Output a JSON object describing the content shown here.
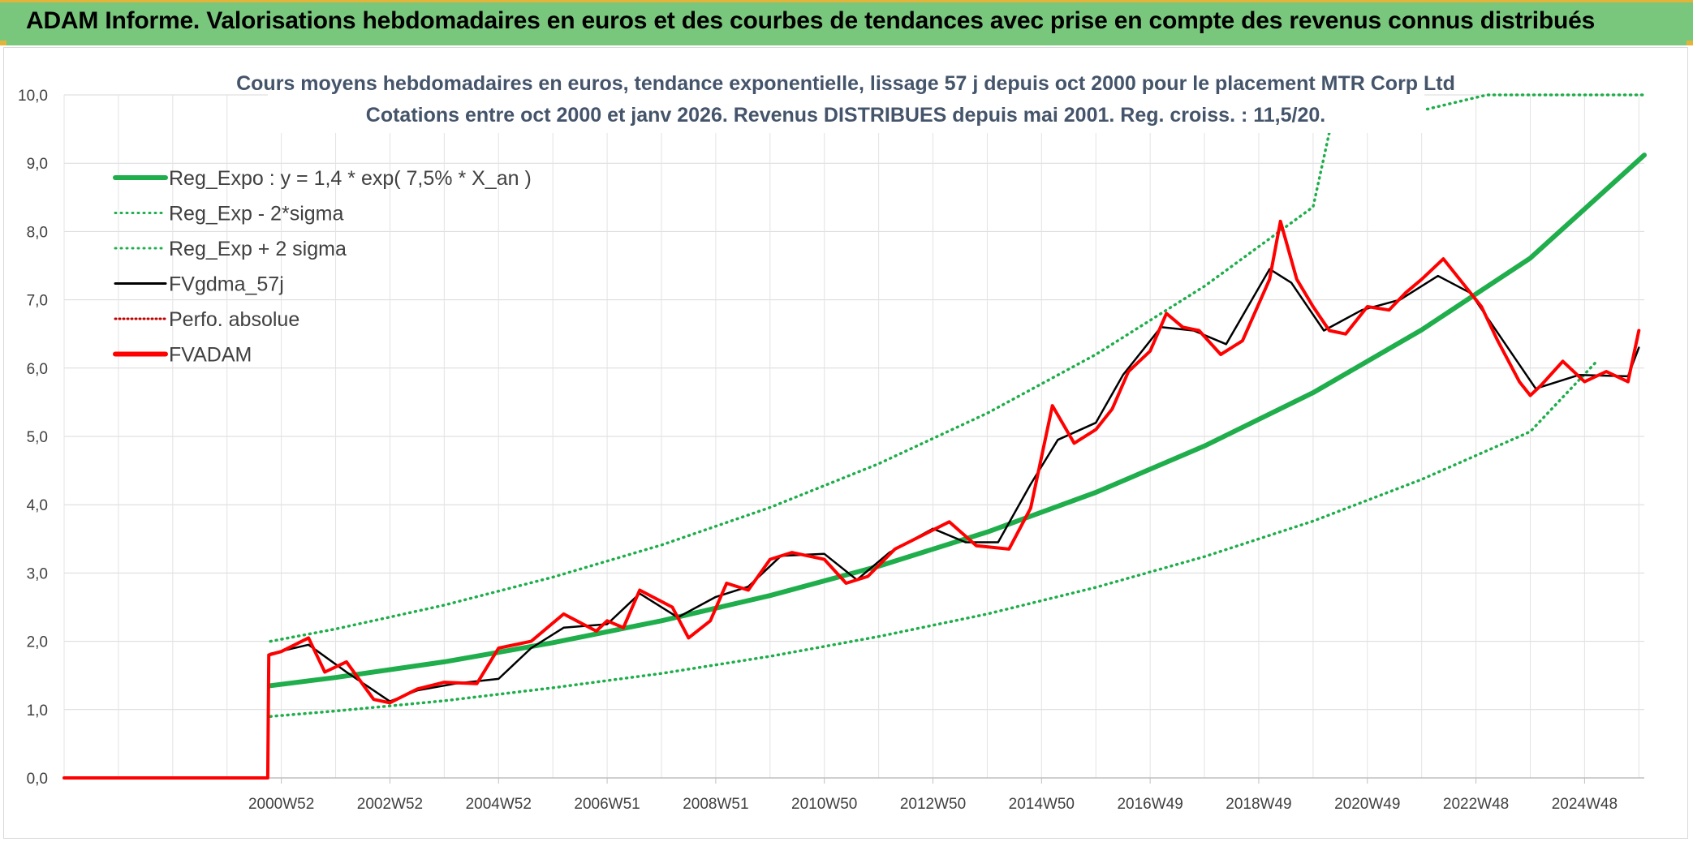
{
  "header": {
    "title": "ADAM Informe. Valorisations hebdomadaires en euros et des courbes de tendances avec prise en compte des revenus connus distribués"
  },
  "chart_data": {
    "type": "line",
    "title_lines": [
      "Cours moyens hebdomadaires en euros, tendance exponentielle, lissage 57 j depuis oct 2000 pour le placement MTR Corp Ltd",
      "Cotations entre oct 2000 et janv 2026. Revenus DISTRIBUES depuis mai 2001. Reg. croiss. : 11,5/20."
    ],
    "xlabel": "",
    "ylabel": "",
    "ylim": [
      0,
      10
    ],
    "y_ticks": [
      "0,0",
      "1,0",
      "2,0",
      "3,0",
      "4,0",
      "5,0",
      "6,0",
      "7,0",
      "8,0",
      "9,0",
      "10,0"
    ],
    "x_range_years": [
      1997,
      2026.1
    ],
    "x_tick_labels": [
      {
        "year": 2001.0,
        "label": "2000W52"
      },
      {
        "year": 2003.0,
        "label": "2002W52"
      },
      {
        "year": 2005.0,
        "label": "2004W52"
      },
      {
        "year": 2007.0,
        "label": "2006W51"
      },
      {
        "year": 2009.0,
        "label": "2008W51"
      },
      {
        "year": 2011.0,
        "label": "2010W50"
      },
      {
        "year": 2013.0,
        "label": "2012W50"
      },
      {
        "year": 2015.0,
        "label": "2014W50"
      },
      {
        "year": 2017.0,
        "label": "2016W49"
      },
      {
        "year": 2019.0,
        "label": "2018W49"
      },
      {
        "year": 2021.0,
        "label": "2020W49"
      },
      {
        "year": 2023.0,
        "label": "2022W48"
      },
      {
        "year": 2025.0,
        "label": "2024W48"
      }
    ],
    "grid": true,
    "legend_position": "top-left",
    "series": [
      {
        "name": "Reg_Expo : y = 1,4 * exp( 7,5% *  X_an )",
        "color": "#1fae4b",
        "style": "solid-thick",
        "x": [
          2000.8,
          2002,
          2004,
          2006,
          2008,
          2010,
          2012,
          2014,
          2016,
          2018,
          2020,
          2022,
          2024,
          2026.1
        ],
        "y": [
          1.35,
          1.47,
          1.7,
          1.98,
          2.3,
          2.67,
          3.1,
          3.6,
          4.18,
          4.86,
          5.64,
          6.56,
          7.61,
          9.12
        ]
      },
      {
        "name": "Reg_Exp - 2*sigma",
        "color": "#1fae4b",
        "style": "dotted",
        "x": [
          2000.8,
          2002,
          2004,
          2006,
          2008,
          2010,
          2012,
          2014,
          2016,
          2018,
          2020,
          2022,
          2024,
          2025.2
        ],
        "y": [
          0.9,
          0.98,
          1.13,
          1.32,
          1.53,
          1.78,
          2.07,
          2.4,
          2.79,
          3.24,
          3.76,
          4.37,
          5.07,
          6.08
        ]
      },
      {
        "name": "Reg_Exp + 2 sigma",
        "color": "#1fae4b",
        "style": "dotted",
        "x": [
          2000.8,
          2002,
          2004,
          2006,
          2008,
          2010,
          2012,
          2014,
          2016,
          2018,
          2020,
          2020.3,
          2023.2,
          2026.1
        ],
        "y": [
          2.0,
          2.18,
          2.53,
          2.94,
          3.41,
          3.96,
          4.6,
          5.34,
          6.2,
          7.2,
          8.36,
          9.45,
          10.0,
          10.0
        ]
      },
      {
        "name": "FVgdma_57j",
        "color": "#000000",
        "style": "solid",
        "x": [
          2000.8,
          2001.5,
          2002.2,
          2003.0,
          2003.5,
          2004.2,
          2005.0,
          2005.6,
          2006.2,
          2007.0,
          2007.6,
          2008.3,
          2009.0,
          2009.6,
          2010.2,
          2011.0,
          2011.6,
          2012.2,
          2013.0,
          2013.6,
          2014.2,
          2014.8,
          2015.3,
          2016.0,
          2016.5,
          2017.2,
          2017.8,
          2018.4,
          2019.2,
          2019.6,
          2020.2,
          2020.9,
          2021.6,
          2022.3,
          2022.9,
          2023.5,
          2024.1,
          2024.9,
          2025.8,
          2026.0
        ],
        "y": [
          1.82,
          1.95,
          1.55,
          1.12,
          1.28,
          1.38,
          1.45,
          1.9,
          2.2,
          2.25,
          2.7,
          2.35,
          2.65,
          2.8,
          3.25,
          3.28,
          2.9,
          3.3,
          3.65,
          3.45,
          3.45,
          4.3,
          4.95,
          5.2,
          5.9,
          6.6,
          6.55,
          6.35,
          7.45,
          7.25,
          6.55,
          6.85,
          7.0,
          7.35,
          7.1,
          6.4,
          5.7,
          5.9,
          5.88,
          6.3
        ]
      },
      {
        "name": "Perfo. absolue",
        "color": "#c00000",
        "style": "dotted",
        "x": [],
        "y": []
      },
      {
        "name": "FVADAM",
        "color": "#ff0000",
        "style": "solid-thick",
        "x": [
          1997.0,
          2000.75,
          2000.77,
          2001.0,
          2001.5,
          2001.8,
          2002.2,
          2002.7,
          2003.0,
          2003.5,
          2004.0,
          2004.6,
          2005.0,
          2005.6,
          2006.2,
          2006.8,
          2007.0,
          2007.3,
          2007.6,
          2008.2,
          2008.5,
          2008.9,
          2009.2,
          2009.6,
          2010.0,
          2010.4,
          2011.0,
          2011.4,
          2011.8,
          2012.3,
          2012.8,
          2013.3,
          2013.8,
          2014.4,
          2014.8,
          2015.2,
          2015.6,
          2016.0,
          2016.3,
          2016.6,
          2017.0,
          2017.3,
          2017.6,
          2017.9,
          2018.3,
          2018.7,
          2019.2,
          2019.4,
          2019.7,
          2020.0,
          2020.3,
          2020.6,
          2021.0,
          2021.4,
          2021.7,
          2022.0,
          2022.4,
          2022.8,
          2023.1,
          2023.4,
          2023.8,
          2024.0,
          2024.2,
          2024.6,
          2025.0,
          2025.4,
          2025.8,
          2026.0
        ],
        "y": [
          0.0,
          0.0,
          1.8,
          1.85,
          2.05,
          1.55,
          1.7,
          1.15,
          1.1,
          1.3,
          1.4,
          1.38,
          1.9,
          2.0,
          2.4,
          2.15,
          2.3,
          2.2,
          2.75,
          2.5,
          2.05,
          2.3,
          2.85,
          2.75,
          3.2,
          3.3,
          3.2,
          2.85,
          2.95,
          3.35,
          3.55,
          3.75,
          3.4,
          3.35,
          3.95,
          5.45,
          4.9,
          5.1,
          5.4,
          5.95,
          6.25,
          6.8,
          6.6,
          6.55,
          6.2,
          6.4,
          7.3,
          8.15,
          7.3,
          6.9,
          6.55,
          6.5,
          6.9,
          6.85,
          7.1,
          7.3,
          7.6,
          7.2,
          6.9,
          6.4,
          5.8,
          5.6,
          5.75,
          6.1,
          5.8,
          5.95,
          5.8,
          6.55
        ]
      }
    ]
  }
}
